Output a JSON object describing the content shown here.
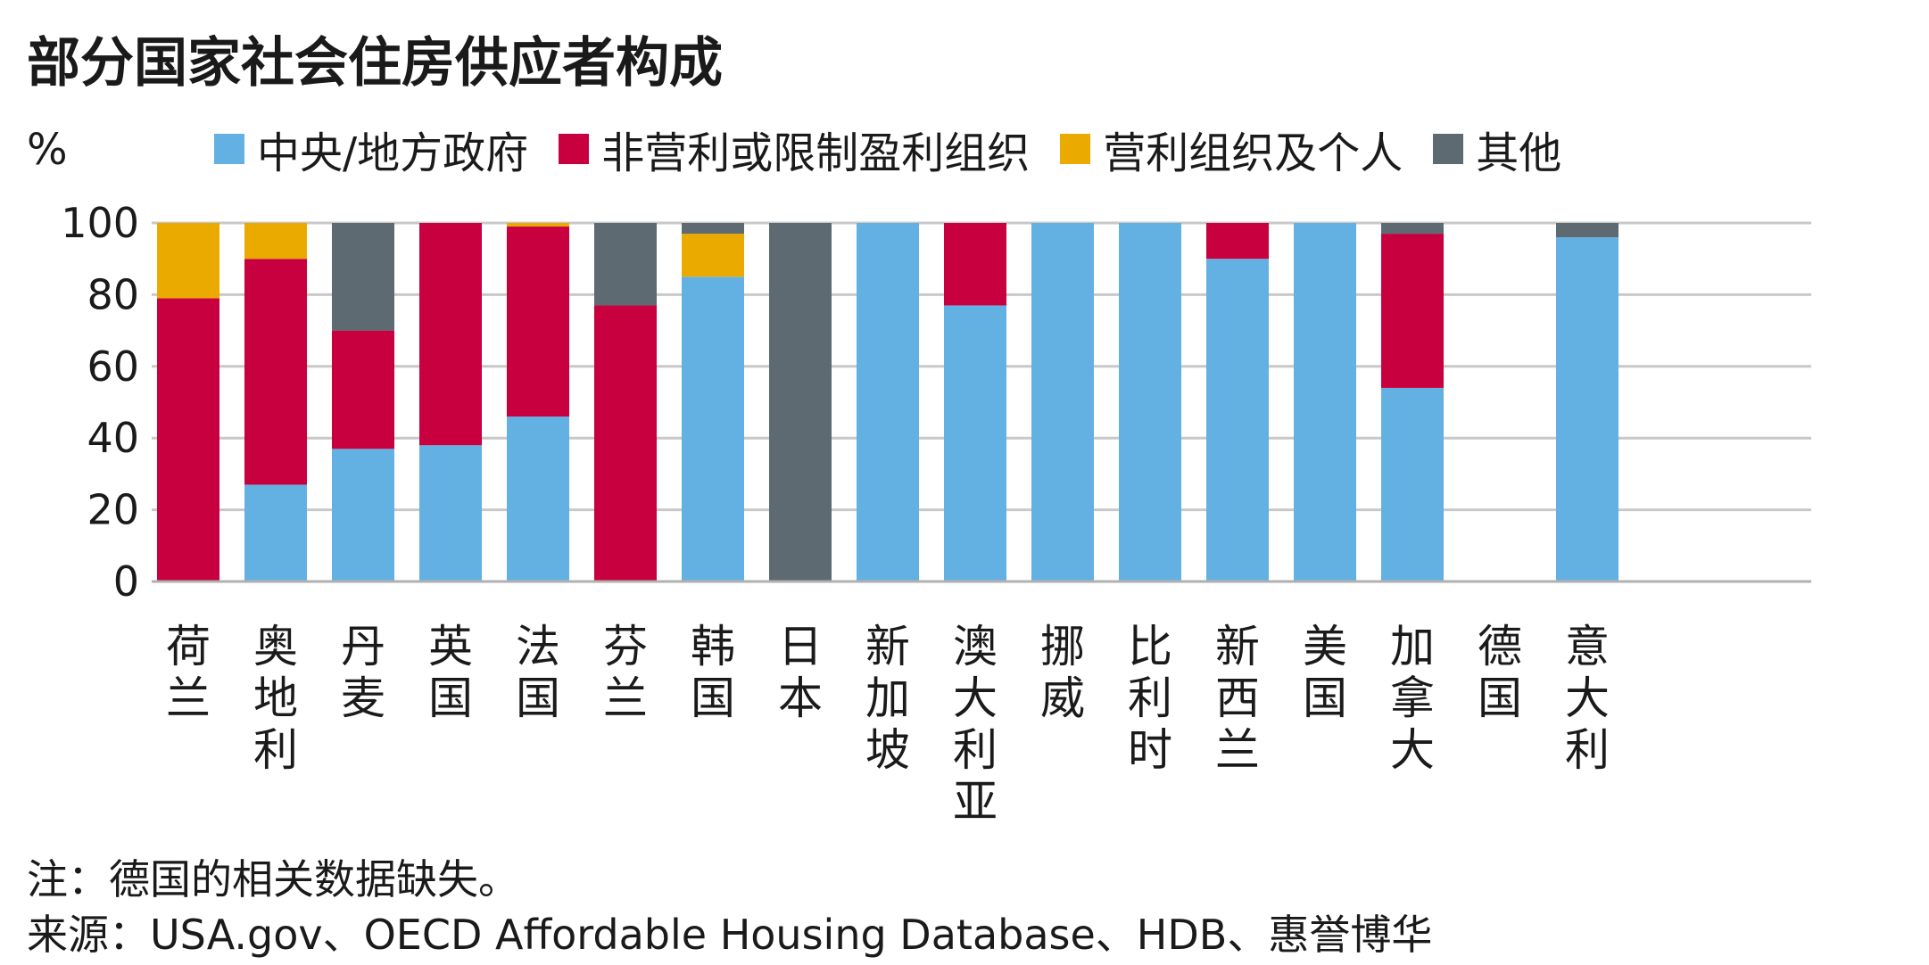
{
  "chart_data": {
    "type": "bar",
    "stacked": true,
    "title": "部分国家社会住房供应者构成",
    "ylabel": "%",
    "ylim": [
      0,
      100
    ],
    "yticks": [
      0,
      20,
      40,
      60,
      80,
      100
    ],
    "grid": true,
    "legend_position": "top",
    "categories": [
      "荷兰",
      "奥地利",
      "丹麦",
      "英国",
      "法国",
      "芬兰",
      "韩国",
      "日本",
      "新加坡",
      "澳大利亚",
      "挪威",
      "比利时",
      "新西兰",
      "美国",
      "加拿大",
      "德国",
      "意大利"
    ],
    "series": [
      {
        "name": "中央/地方政府",
        "color": "#63b1e3",
        "values": [
          0,
          27,
          37,
          38,
          46,
          0,
          85,
          0,
          100,
          77,
          100,
          100,
          90,
          100,
          54,
          0,
          96
        ]
      },
      {
        "name": "非营利或限制盈利组织",
        "color": "#c8003f",
        "values": [
          79,
          63,
          33,
          62,
          53,
          77,
          0,
          0,
          0,
          23,
          0,
          0,
          10,
          0,
          43,
          0,
          0
        ]
      },
      {
        "name": "营利组织及个人",
        "color": "#eaaa00",
        "values": [
          21,
          10,
          0,
          0,
          1,
          0,
          12,
          0,
          0,
          0,
          0,
          0,
          0,
          0,
          0,
          0,
          0
        ]
      },
      {
        "name": "其他",
        "color": "#5d6a72",
        "values": [
          0,
          0,
          30,
          0,
          0,
          23,
          3,
          100,
          0,
          0,
          0,
          0,
          0,
          0,
          3,
          0,
          4
        ]
      }
    ]
  },
  "note": "注：德国的相关数据缺失。",
  "source": "来源：USA.gov、OECD Affordable Housing Database、HDB、惠誉博华"
}
